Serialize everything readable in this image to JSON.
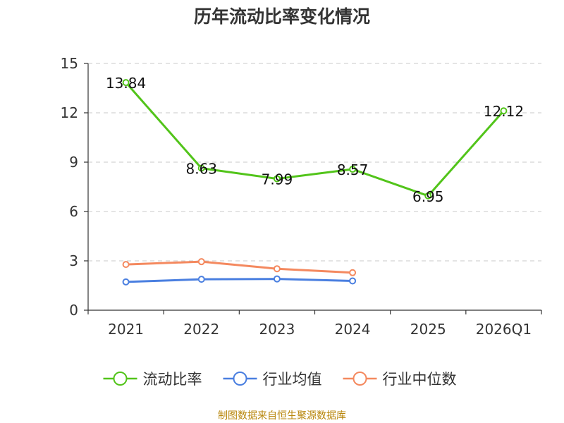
{
  "chart_data": {
    "type": "line",
    "title": "历年流动比率变化情况",
    "categories": [
      "2021",
      "2022",
      "2023",
      "2024",
      "2025",
      "2026Q1"
    ],
    "y_ticks": [
      "0",
      "3",
      "6",
      "9",
      "12",
      "15"
    ],
    "ylim": [
      0,
      15
    ],
    "grid": true,
    "legend_position": "bottom",
    "series": [
      {
        "name": "流动比率",
        "color": "#52c41a",
        "values": [
          13.84,
          8.63,
          7.99,
          8.57,
          6.95,
          12.12
        ],
        "labels": [
          "13.84",
          "8.63",
          "7.99",
          "8.57",
          "6.95",
          "12.12"
        ]
      },
      {
        "name": "行业均值",
        "color": "#4a7fe0",
        "values": [
          1.72,
          1.88,
          1.9,
          1.78,
          null,
          null
        ]
      },
      {
        "name": "行业中位数",
        "color": "#f4895f",
        "values": [
          2.78,
          2.95,
          2.52,
          2.28,
          null,
          null
        ]
      }
    ]
  },
  "source": "制图数据来自恒生聚源数据库"
}
